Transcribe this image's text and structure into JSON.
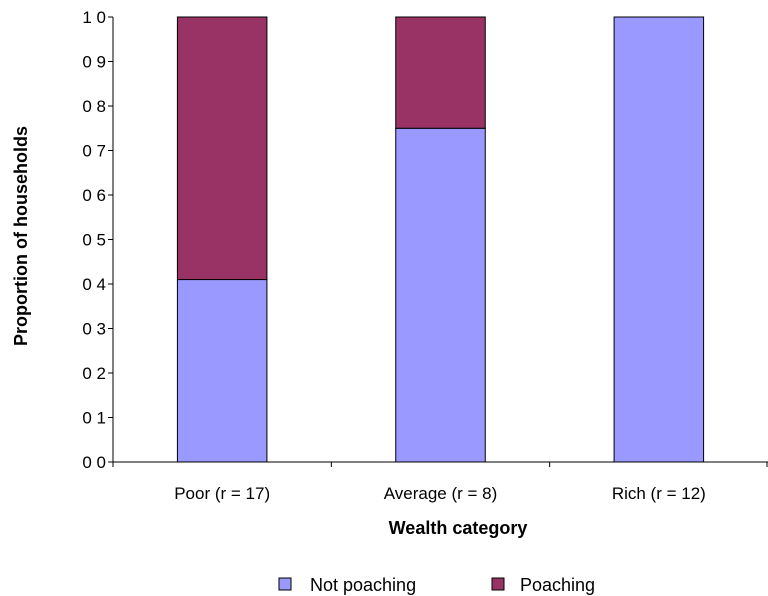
{
  "chart_data": {
    "type": "bar",
    "stacked": true,
    "categories": [
      "Poor (r = 17)",
      "Average (r = 8)",
      "Rich (r = 12)"
    ],
    "series": [
      {
        "name": "Not poaching",
        "values": [
          0.41,
          0.75,
          1.0
        ]
      },
      {
        "name": "Poaching",
        "values": [
          0.59,
          0.25,
          0.0
        ]
      }
    ],
    "ylim": [
      0,
      1
    ],
    "yticks": [
      "0 0",
      "0 1",
      "0 2",
      "0 3",
      "0 4",
      "0 5",
      "0 6",
      "0 7",
      "0 8",
      "0 9",
      "1 0"
    ],
    "ylabel": "Proportion of households",
    "xlabel": "Wealth category",
    "legend_position": "bottom",
    "grid": false
  },
  "colors": {
    "Not poaching": "#9999ff",
    "Poaching": "#993366",
    "axis": "#000000"
  }
}
